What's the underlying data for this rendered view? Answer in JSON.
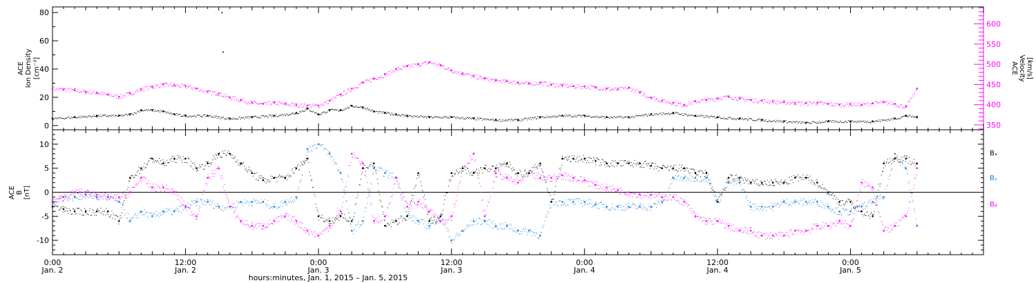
{
  "chart_data": [
    {
      "type": "scatter",
      "panel": "plasma",
      "left_axis": {
        "label_lines": [
          "ACE",
          "Ion Density",
          "[cm⁻³]"
        ],
        "ylim": [
          -3,
          84
        ],
        "ticks": [
          0,
          20,
          40,
          60,
          80
        ],
        "tick_labels": [
          "0",
          "20",
          "40",
          "60",
          "80"
        ]
      },
      "right_axis": {
        "label_lines": [
          "ACE",
          "Velocity",
          "[km/s]"
        ],
        "color": "#ff00ff",
        "ylim": [
          338,
          642
        ],
        "ticks": [
          350,
          400,
          450,
          500,
          550,
          600
        ],
        "tick_labels": [
          "350",
          "400",
          "450",
          "500",
          "550",
          "600"
        ]
      },
      "series": [
        {
          "color": "#000000",
          "axis": "left",
          "x_hours": [
            0,
            2,
            4,
            6,
            7,
            8,
            9,
            10,
            11,
            12,
            14,
            16,
            18,
            20,
            22,
            23,
            24,
            25,
            26,
            27,
            28,
            29,
            30,
            31,
            32,
            34,
            36,
            38,
            40,
            42,
            44,
            46,
            48,
            50,
            52,
            54,
            56,
            58,
            60,
            62,
            64,
            66,
            68,
            70,
            72,
            74,
            76,
            77,
            78
          ],
          "values": [
            5,
            6,
            7,
            7,
            8,
            11,
            11,
            10,
            8,
            7,
            7,
            5,
            6,
            7,
            9,
            12,
            8,
            11,
            11,
            14,
            13,
            10,
            9,
            8,
            7,
            6,
            6,
            5,
            4,
            4,
            6,
            7,
            7,
            6,
            6,
            8,
            9,
            7,
            6,
            5,
            4,
            3,
            2,
            3,
            3,
            3,
            5,
            7,
            6
          ],
          "outliers": [
            {
              "x_hours": 15.3,
              "value": 80
            },
            {
              "x_hours": 15.4,
              "value": 52
            }
          ]
        },
        {
          "color": "#ff00ff",
          "axis": "right",
          "x_hours": [
            0,
            1,
            2,
            3,
            4,
            5,
            6,
            7,
            8,
            9,
            10,
            11,
            12,
            13,
            14,
            15,
            16,
            17,
            18,
            19,
            20,
            21,
            22,
            23,
            24,
            25,
            26,
            27,
            28,
            29,
            30,
            31,
            32,
            33,
            34,
            35,
            36,
            37,
            38,
            39,
            40,
            41,
            42,
            43,
            44,
            45,
            46,
            47,
            48,
            49,
            50,
            51,
            52,
            53,
            54,
            55,
            56,
            57,
            58,
            59,
            60,
            61,
            62,
            63,
            64,
            65,
            66,
            67,
            68,
            69,
            70,
            71,
            72,
            73,
            74,
            75,
            76,
            77,
            78
          ],
          "values": [
            440,
            438,
            436,
            432,
            430,
            425,
            420,
            428,
            438,
            445,
            450,
            448,
            446,
            440,
            432,
            428,
            418,
            412,
            405,
            402,
            405,
            402,
            400,
            398,
            398,
            410,
            425,
            440,
            455,
            465,
            475,
            488,
            495,
            500,
            505,
            498,
            485,
            478,
            470,
            465,
            460,
            458,
            455,
            452,
            455,
            450,
            448,
            446,
            445,
            443,
            440,
            438,
            442,
            430,
            418,
            410,
            405,
            400,
            408,
            412,
            416,
            420,
            415,
            412,
            410,
            408,
            406,
            405,
            404,
            405,
            402,
            400,
            402,
            400,
            404,
            406,
            402,
            395,
            440
          ]
        }
      ]
    },
    {
      "type": "scatter",
      "panel": "magnetic_field",
      "left_axis": {
        "label_lines": [
          "ACE",
          "B",
          "[nT]"
        ],
        "ylim": [
          -13,
          13
        ],
        "ticks": [
          -10,
          -5,
          0,
          5,
          10
        ],
        "tick_labels": [
          "-10",
          "-5",
          "0",
          "5",
          "10"
        ],
        "zero_line": true
      },
      "series": [
        {
          "name": "Bₓ",
          "color": "#000000",
          "x_hours": [
            0,
            1,
            2,
            3,
            4,
            5,
            6,
            7,
            8,
            9,
            10,
            11,
            12,
            13,
            14,
            15,
            16,
            17,
            18,
            19,
            20,
            21,
            22,
            23,
            24,
            25,
            26,
            27,
            28,
            29,
            30,
            31,
            32,
            33,
            34,
            35,
            36,
            37,
            38,
            39,
            40,
            41,
            42,
            43,
            44,
            45,
            46,
            47,
            48,
            49,
            50,
            51,
            52,
            53,
            54,
            55,
            56,
            57,
            58,
            59,
            60,
            61,
            62,
            63,
            64,
            65,
            66,
            67,
            68,
            69,
            70,
            71,
            72,
            73,
            74,
            75,
            76,
            77,
            78
          ],
          "values": [
            -3,
            -3.5,
            -4,
            -4,
            -4,
            -4,
            -6,
            3,
            5,
            7,
            6,
            7,
            7,
            5,
            6,
            8,
            8,
            6,
            4,
            2.5,
            3,
            3,
            5,
            7,
            -5,
            -6,
            -5,
            -6,
            5,
            6,
            -7,
            -6,
            -5,
            4,
            -6,
            -5,
            4,
            5,
            4,
            5,
            5,
            6,
            4,
            4,
            6,
            -2,
            7,
            7,
            7,
            6.5,
            6,
            6,
            6,
            6,
            5.5,
            5,
            5,
            5,
            4,
            4,
            -2,
            3,
            3,
            2,
            2,
            2,
            2,
            3,
            3,
            2,
            0,
            -2,
            -2,
            -4,
            -5,
            6,
            7,
            7,
            6
          ]
        },
        {
          "name": "Bᵧ",
          "color": "#1c7fd4",
          "x_hours": [
            0,
            1,
            2,
            3,
            4,
            5,
            6,
            7,
            8,
            9,
            10,
            11,
            12,
            13,
            14,
            15,
            16,
            17,
            18,
            19,
            20,
            21,
            22,
            23,
            24,
            25,
            26,
            27,
            28,
            29,
            30,
            31,
            32,
            33,
            34,
            35,
            36,
            37,
            38,
            39,
            40,
            41,
            42,
            43,
            44,
            45,
            46,
            47,
            48,
            49,
            50,
            51,
            52,
            53,
            54,
            55,
            56,
            57,
            58,
            59,
            60,
            61,
            62,
            63,
            64,
            65,
            66,
            67,
            68,
            69,
            70,
            71,
            72,
            73,
            74,
            75,
            76,
            77,
            78
          ],
          "values": [
            -2,
            -1,
            -1,
            -0.5,
            -1,
            -1,
            -2,
            -6,
            -4,
            -5,
            -4,
            -4,
            -3,
            -2,
            -2,
            -3,
            -3,
            -2,
            -2,
            -2,
            -3,
            -2,
            -1,
            9,
            10,
            8,
            4,
            -8,
            -6,
            5,
            4,
            3,
            -5,
            -6,
            -7,
            -5,
            -10,
            -8,
            -6,
            -6,
            -7,
            -7,
            -8,
            -8,
            -9,
            -2,
            -2,
            -2,
            -2,
            -2.5,
            -3,
            -3,
            -3,
            -3,
            -3,
            -2,
            3,
            3,
            3,
            3,
            -2,
            2,
            2,
            -3,
            -3,
            -3,
            -2,
            -2,
            -2,
            -2,
            -3,
            -4,
            -4,
            -3,
            -2,
            -1,
            8,
            5,
            -7
          ]
        },
        {
          "name": "Bᵩ",
          "color": "#ff00ff",
          "x_hours": [
            0,
            1,
            2,
            3,
            4,
            5,
            6,
            7,
            8,
            9,
            10,
            11,
            12,
            13,
            14,
            15,
            16,
            17,
            18,
            19,
            20,
            21,
            22,
            23,
            24,
            25,
            26,
            27,
            28,
            29,
            30,
            31,
            32,
            33,
            34,
            35,
            36,
            37,
            38,
            39,
            40,
            41,
            42,
            43,
            44,
            45,
            46,
            47,
            48,
            49,
            50,
            51,
            52,
            53,
            54,
            55,
            56,
            57,
            58,
            59,
            60,
            61,
            62,
            63,
            64,
            65,
            66,
            67,
            68,
            69,
            70,
            71,
            72,
            73,
            74,
            75,
            76,
            77,
            78
          ],
          "values": [
            -2,
            -1,
            0,
            0,
            -0.5,
            -1,
            -1,
            0,
            3,
            1,
            1,
            0,
            -3,
            -5,
            3,
            5,
            -3,
            -6,
            -7,
            -7,
            -6,
            -5,
            -6,
            -8,
            -9,
            -7,
            -4,
            8,
            6,
            -6,
            -5,
            3,
            -3,
            -2,
            -4,
            -6,
            -5,
            5,
            8,
            -5,
            4,
            3,
            2,
            4,
            3,
            3,
            3.5,
            3,
            2.5,
            1.5,
            1,
            0.5,
            0,
            -0.5,
            -0.5,
            -1,
            -1,
            -2,
            -5,
            -6,
            -6,
            -7,
            -8,
            -8,
            -9,
            -9,
            -9,
            -8,
            -8,
            -7,
            -7,
            -6,
            -7,
            2,
            1,
            -8,
            -7,
            -5,
            5
          ]
        }
      ]
    }
  ],
  "x_axis": {
    "xlim_hours": [
      0,
      84
    ],
    "major_every_hours": 12,
    "minor_every_hours": 1,
    "tick_labels": [
      {
        "hour": 0,
        "time": "0:00",
        "date": "Jan. 2"
      },
      {
        "hour": 12,
        "time": "12:00",
        "date": "Jan. 2"
      },
      {
        "hour": 24,
        "time": "0:00",
        "date": "Jan. 3"
      },
      {
        "hour": 36,
        "time": "12:00",
        "date": "Jan. 3"
      },
      {
        "hour": 48,
        "time": "0:00",
        "date": "Jan. 4"
      },
      {
        "hour": 60,
        "time": "12:00",
        "date": "Jan. 4"
      },
      {
        "hour": 72,
        "time": "0:00",
        "date": "Jan. 5"
      }
    ],
    "label": "hours:minutes, Jan.  1, 2015 – Jan.  5, 2015"
  }
}
